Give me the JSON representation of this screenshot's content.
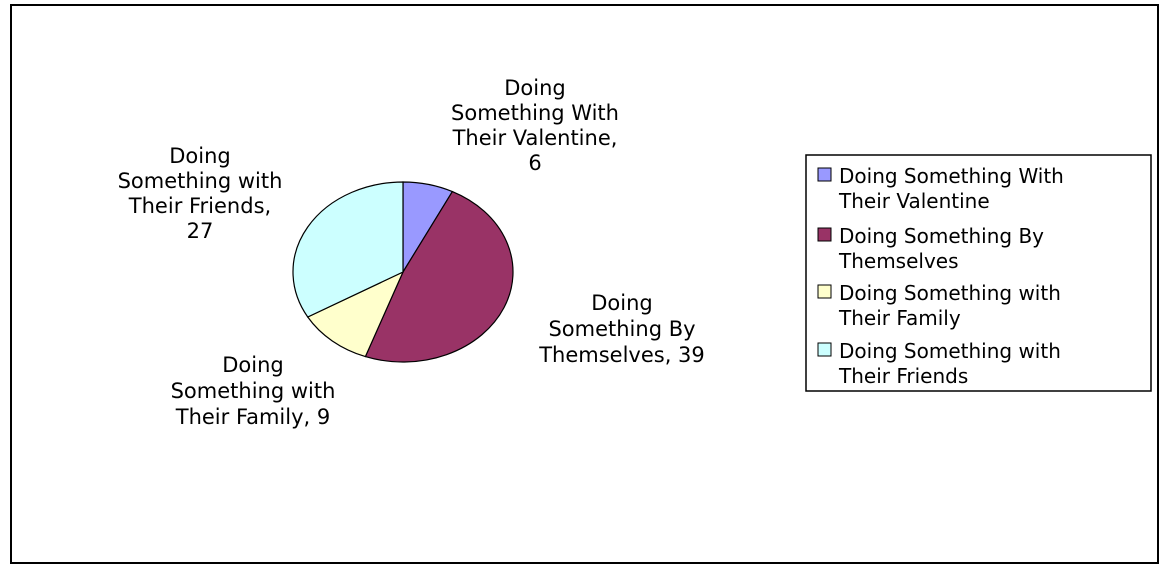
{
  "chart_data": {
    "type": "pie",
    "title": "",
    "legend_position": "right",
    "slices": [
      {
        "name": "Doing Something With Their Valentine",
        "value": 6,
        "color": "#9999FF",
        "label_lines": [
          "Doing",
          "Something With",
          "Their Valentine,",
          "6"
        ],
        "legend_lines": [
          "Doing Something With",
          "Their Valentine"
        ]
      },
      {
        "name": "Doing Something By Themselves",
        "value": 39,
        "color": "#993366",
        "label_lines": [
          "Doing",
          "Something By",
          "Themselves, 39"
        ],
        "legend_lines": [
          "Doing Something By",
          "Themselves"
        ]
      },
      {
        "name": "Doing Something with Their Family",
        "value": 9,
        "color": "#FFFFCC",
        "label_lines": [
          "Doing",
          "Something with",
          "Their Family, 9"
        ],
        "legend_lines": [
          "Doing Something with",
          "Their Family"
        ]
      },
      {
        "name": "Doing Something with Their Friends",
        "value": 27,
        "color": "#CCFFFF",
        "label_lines": [
          "Doing",
          "Something with",
          "Their Friends,",
          "27"
        ],
        "legend_lines": [
          "Doing Something with",
          "Their Friends"
        ]
      }
    ]
  }
}
